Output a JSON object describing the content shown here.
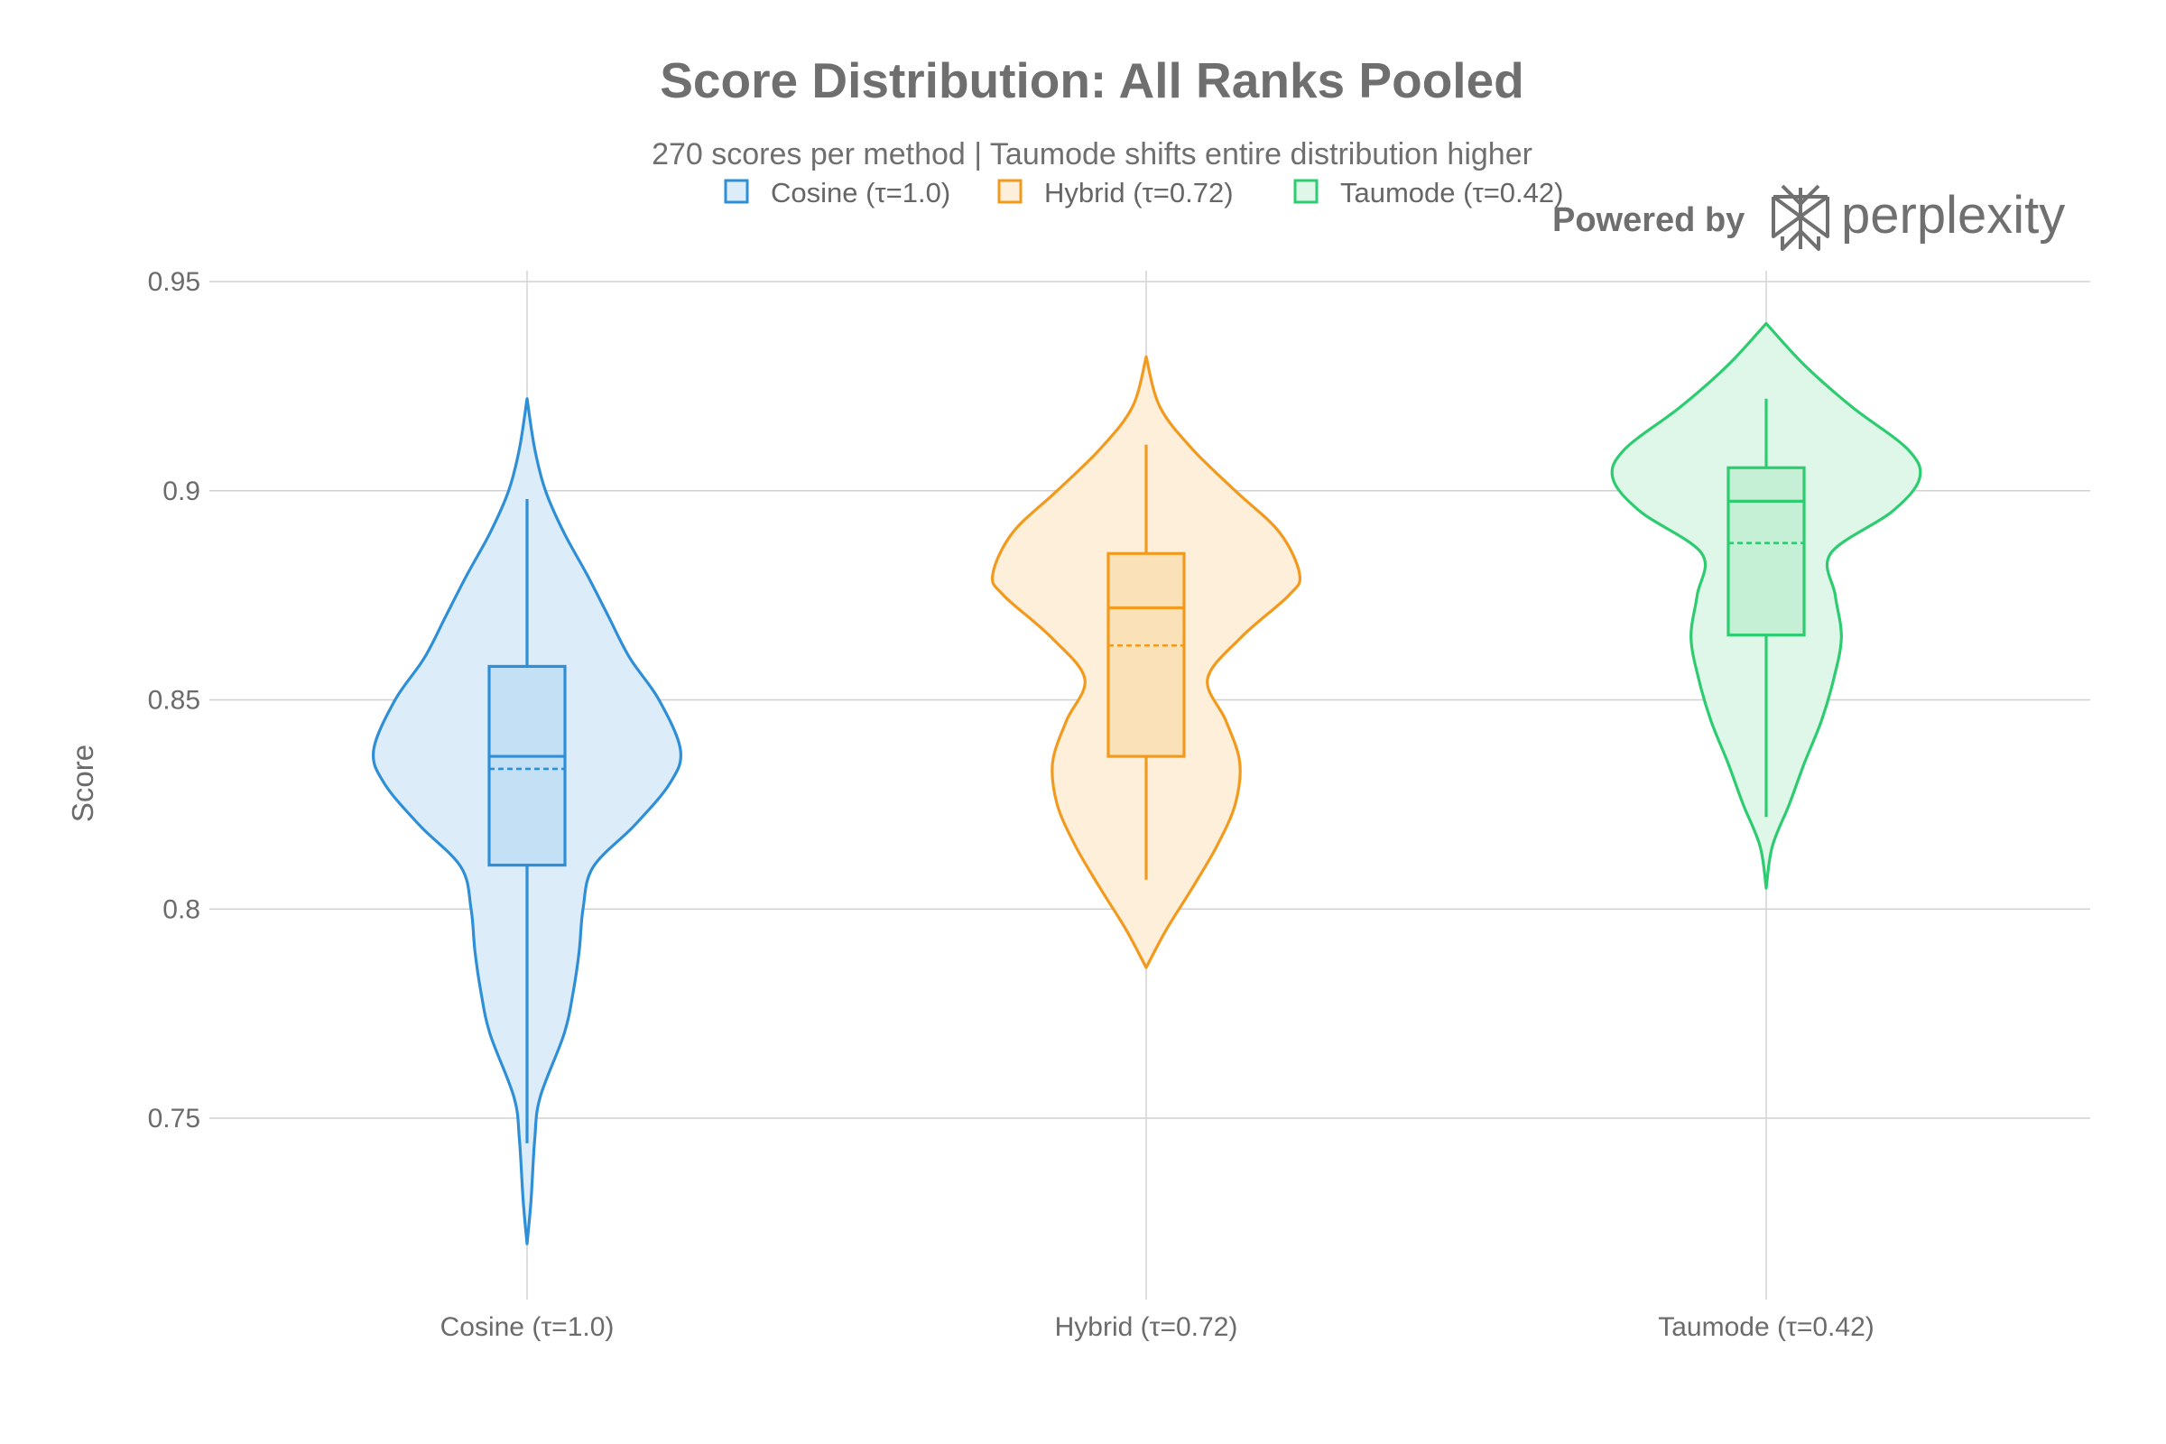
{
  "chart_data": {
    "type": "violin",
    "title": "Score Distribution: All Ranks Pooled",
    "subtitle": "270 scores per method | Taumode shifts entire distribution higher",
    "xlabel": "",
    "ylabel": "Score",
    "ylim": [
      0.705,
      0.955
    ],
    "yticks": [
      0.75,
      0.8,
      0.85,
      0.9,
      0.95
    ],
    "ytick_labels": [
      "0.75",
      "0.8",
      "0.85",
      "0.9",
      "0.95"
    ],
    "grid": true,
    "legend_position": "top-center",
    "categories": [
      "Cosine (τ=1.0)",
      "Hybrid (τ=0.72)",
      "Taumode (τ=0.42)"
    ],
    "series": [
      {
        "name": "Cosine (τ=1.0)",
        "color": "#2e8fd6",
        "fill": "#dcecf9",
        "box_fill": "#c4e0f5",
        "violin_min": 0.72,
        "violin_max": 0.922,
        "whisker_low": 0.744,
        "whisker_high": 0.898,
        "q1": 0.8105,
        "median": 0.8365,
        "q3": 0.858,
        "mean": 0.8335,
        "density": [
          [
            0.72,
            0.0
          ],
          [
            0.73,
            0.025
          ],
          [
            0.745,
            0.05
          ],
          [
            0.755,
            0.085
          ],
          [
            0.77,
            0.24
          ],
          [
            0.78,
            0.3
          ],
          [
            0.79,
            0.34
          ],
          [
            0.8,
            0.365
          ],
          [
            0.81,
            0.43
          ],
          [
            0.82,
            0.7
          ],
          [
            0.83,
            0.93
          ],
          [
            0.838,
            1.0
          ],
          [
            0.85,
            0.86
          ],
          [
            0.86,
            0.67
          ],
          [
            0.87,
            0.53
          ],
          [
            0.88,
            0.39
          ],
          [
            0.89,
            0.24
          ],
          [
            0.9,
            0.12
          ],
          [
            0.91,
            0.05
          ],
          [
            0.922,
            0.0
          ]
        ]
      },
      {
        "name": "Hybrid (τ=0.72)",
        "color": "#f19a1d",
        "fill": "#fdefd9",
        "box_fill": "#fbe1b8",
        "violin_min": 0.786,
        "violin_max": 0.932,
        "whisker_low": 0.807,
        "whisker_high": 0.911,
        "q1": 0.8365,
        "median": 0.872,
        "q3": 0.885,
        "mean": 0.863,
        "density": [
          [
            0.786,
            0.0
          ],
          [
            0.795,
            0.13
          ],
          [
            0.805,
            0.3
          ],
          [
            0.815,
            0.46
          ],
          [
            0.825,
            0.58
          ],
          [
            0.835,
            0.61
          ],
          [
            0.845,
            0.52
          ],
          [
            0.855,
            0.4
          ],
          [
            0.865,
            0.62
          ],
          [
            0.875,
            0.93
          ],
          [
            0.88,
            1.0
          ],
          [
            0.89,
            0.87
          ],
          [
            0.9,
            0.58
          ],
          [
            0.91,
            0.3
          ],
          [
            0.92,
            0.09
          ],
          [
            0.932,
            0.0
          ]
        ]
      },
      {
        "name": "Taumode (τ=0.42)",
        "color": "#2ecc71",
        "fill": "#dff7e8",
        "box_fill": "#c6f0d6",
        "violin_min": 0.805,
        "violin_max": 0.94,
        "whisker_low": 0.822,
        "whisker_high": 0.922,
        "q1": 0.8655,
        "median": 0.8975,
        "q3": 0.9055,
        "mean": 0.8875,
        "density": [
          [
            0.805,
            0.0
          ],
          [
            0.815,
            0.04
          ],
          [
            0.825,
            0.15
          ],
          [
            0.835,
            0.25
          ],
          [
            0.845,
            0.36
          ],
          [
            0.855,
            0.44
          ],
          [
            0.865,
            0.49
          ],
          [
            0.875,
            0.45
          ],
          [
            0.885,
            0.42
          ],
          [
            0.895,
            0.82
          ],
          [
            0.903,
            1.0
          ],
          [
            0.91,
            0.92
          ],
          [
            0.92,
            0.56
          ],
          [
            0.93,
            0.25
          ],
          [
            0.94,
            0.0
          ]
        ]
      }
    ]
  },
  "legend": {
    "items": [
      "Cosine (τ=1.0)",
      "Hybrid (τ=0.72)",
      "Taumode (τ=0.42)"
    ]
  },
  "branding": {
    "prefix": "Powered by",
    "name": "perplexity"
  }
}
